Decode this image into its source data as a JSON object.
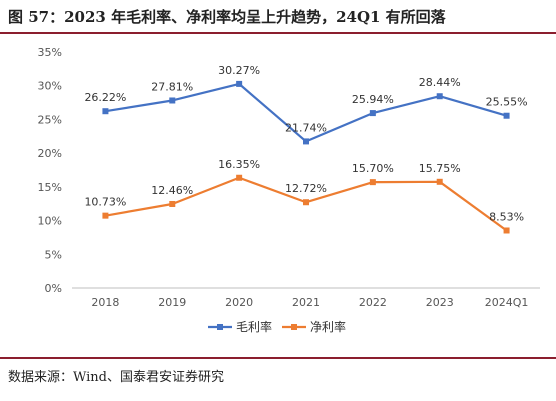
{
  "figure": {
    "title": "图 57：2023 年毛利率、净利率均呈上升趋势，24Q1 有所回落",
    "source": "数据来源：Wind、国泰君安证券研究"
  },
  "chart_data": {
    "type": "line",
    "categories": [
      "2018",
      "2019",
      "2020",
      "2021",
      "2022",
      "2023",
      "2024Q1"
    ],
    "series": [
      {
        "name": "毛利率",
        "values": [
          26.22,
          27.81,
          30.27,
          21.74,
          25.94,
          28.44,
          25.55
        ],
        "labels": [
          "26.22%",
          "27.81%",
          "30.27%",
          "21.74%",
          "25.94%",
          "28.44%",
          "25.55%"
        ],
        "color": "#4472C4"
      },
      {
        "name": "净利率",
        "values": [
          10.73,
          12.46,
          16.35,
          12.72,
          15.7,
          15.75,
          8.53
        ],
        "labels": [
          "10.73%",
          "12.46%",
          "16.35%",
          "12.72%",
          "15.70%",
          "15.75%",
          "8.53%"
        ],
        "color": "#ED7D31"
      }
    ],
    "yticks": [
      "0%",
      "5%",
      "10%",
      "15%",
      "20%",
      "25%",
      "30%",
      "35%"
    ],
    "ylim": [
      0,
      35
    ],
    "grid": false,
    "legend": "bottom-center"
  }
}
